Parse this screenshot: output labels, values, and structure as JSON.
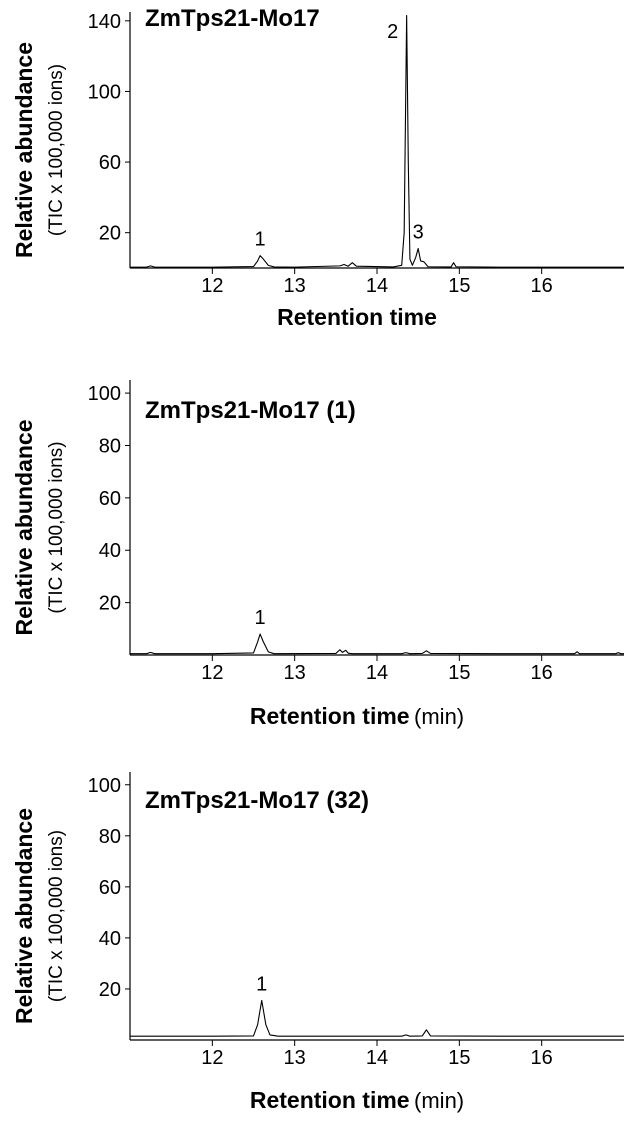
{
  "chart_data": [
    {
      "type": "line",
      "title": "ZmTps21-Mo17",
      "ylabel": "Relative abundance",
      "ylabel_sub": "(TIC x 100,000 ions)",
      "xlabel": "Retention time",
      "xlim": [
        11,
        17
      ],
      "xticks": [
        12,
        13,
        14,
        15,
        16
      ],
      "ylim": [
        0,
        145
      ],
      "yticks": [
        20,
        60,
        100,
        140
      ],
      "color": "#000000",
      "x": [
        11.0,
        11.2,
        11.25,
        11.3,
        12.0,
        12.5,
        12.55,
        12.58,
        12.62,
        12.68,
        12.75,
        13.0,
        13.55,
        13.6,
        13.65,
        13.7,
        13.75,
        14.2,
        14.3,
        14.33,
        14.36,
        14.38,
        14.4,
        14.43,
        14.47,
        14.5,
        14.53,
        14.57,
        14.62,
        14.9,
        14.93,
        14.96,
        15.5,
        16.0,
        16.5,
        17.0
      ],
      "values": [
        0.5,
        0.5,
        1.2,
        0.5,
        0.5,
        0.8,
        4,
        7,
        5,
        1.5,
        0.6,
        0.5,
        1.2,
        2,
        1,
        3,
        1,
        0.6,
        1.5,
        20,
        143,
        60,
        5,
        1.5,
        6,
        11,
        4,
        3.5,
        0.7,
        0.6,
        3,
        0.7,
        0.5,
        0.5,
        0.5,
        0.5
      ],
      "annotations": [
        {
          "text": "1",
          "x": 12.58
        },
        {
          "text": "2",
          "x": 14.36
        },
        {
          "text": "3",
          "x": 14.5
        }
      ]
    },
    {
      "type": "line",
      "title": "ZmTps21-Mo17 (1)",
      "ylabel": "Relative abundance",
      "ylabel_sub": "(TIC x 100,000 ions)",
      "xlabel": "Retention time",
      "xlabel_unit": "(min)",
      "xlim": [
        11,
        17
      ],
      "xticks": [
        12,
        13,
        14,
        15,
        16
      ],
      "ylim": [
        0,
        105
      ],
      "yticks": [
        20,
        40,
        60,
        80,
        100
      ],
      "color": "#000000",
      "x": [
        11.0,
        11.2,
        11.25,
        11.3,
        12.0,
        12.5,
        12.55,
        12.58,
        12.62,
        12.68,
        12.75,
        13.5,
        13.55,
        13.58,
        13.62,
        13.65,
        13.7,
        14.3,
        14.35,
        14.4,
        14.55,
        14.6,
        14.65,
        15.5,
        16.4,
        16.43,
        16.46,
        16.9,
        16.93,
        16.96,
        17.0
      ],
      "values": [
        0.5,
        0.5,
        1,
        0.5,
        0.5,
        0.8,
        5,
        8,
        5,
        1.2,
        0.5,
        0.6,
        2,
        1,
        1.8,
        0.7,
        0.5,
        0.5,
        0.9,
        0.5,
        0.6,
        1.6,
        0.6,
        0.5,
        0.5,
        1.2,
        0.5,
        0.5,
        0.9,
        0.5,
        0.5
      ],
      "annotations": [
        {
          "text": "1",
          "x": 12.58
        }
      ]
    },
    {
      "type": "line",
      "title": "ZmTps21-Mo17 (32)",
      "ylabel": "Relative abundance",
      "ylabel_sub": "(TIC x 100,000 ions)",
      "xlabel": "Retention time",
      "xlabel_unit": "(min)",
      "xlim": [
        11,
        17
      ],
      "xticks": [
        12,
        13,
        14,
        15,
        16
      ],
      "ylim": [
        0,
        105
      ],
      "yticks": [
        20,
        40,
        60,
        80,
        100
      ],
      "color": "#000000",
      "x": [
        11.0,
        12.0,
        12.5,
        12.55,
        12.6,
        12.65,
        12.7,
        12.8,
        14.3,
        14.35,
        14.4,
        14.55,
        14.6,
        14.65,
        15.5,
        16.0,
        17.0
      ],
      "values": [
        1.5,
        1.5,
        1.6,
        6,
        15.5,
        6,
        2,
        1.5,
        1.5,
        2,
        1.5,
        1.6,
        4,
        1.6,
        1.5,
        1.5,
        1.5
      ],
      "annotations": [
        {
          "text": "1",
          "x": 12.6
        }
      ]
    }
  ]
}
